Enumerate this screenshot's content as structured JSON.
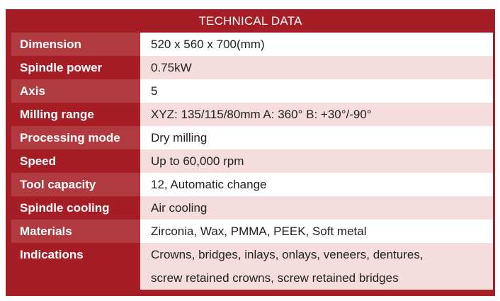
{
  "title": "TECHNICAL DATA",
  "rows": [
    {
      "label": "Dimension",
      "value": "520 x 560 x 700(mm)"
    },
    {
      "label": "Spindle power",
      "value": "0.75kW"
    },
    {
      "label": "Axis",
      "value": "5"
    },
    {
      "label": "Milling range",
      "value": "XYZ: 135/115/80mm A: 360° B: +30°/-90°"
    },
    {
      "label": "Processing mode",
      "value": "Dry milling"
    },
    {
      "label": "Speed",
      "value": "Up to 60,000 rpm"
    },
    {
      "label": "Tool capacity",
      "value": "12, Automatic change"
    },
    {
      "label": "Spindle cooling",
      "value": "Air cooling"
    },
    {
      "label": "Materials",
      "value": "Zirconia, Wax, PMMA, PEEK, Soft metal"
    },
    {
      "label": "Indications",
      "value_lines": [
        "Crowns, bridges, inlays, onlays, veneers, dentures,",
        "screw retained crowns, screw retained bridges"
      ]
    }
  ]
}
